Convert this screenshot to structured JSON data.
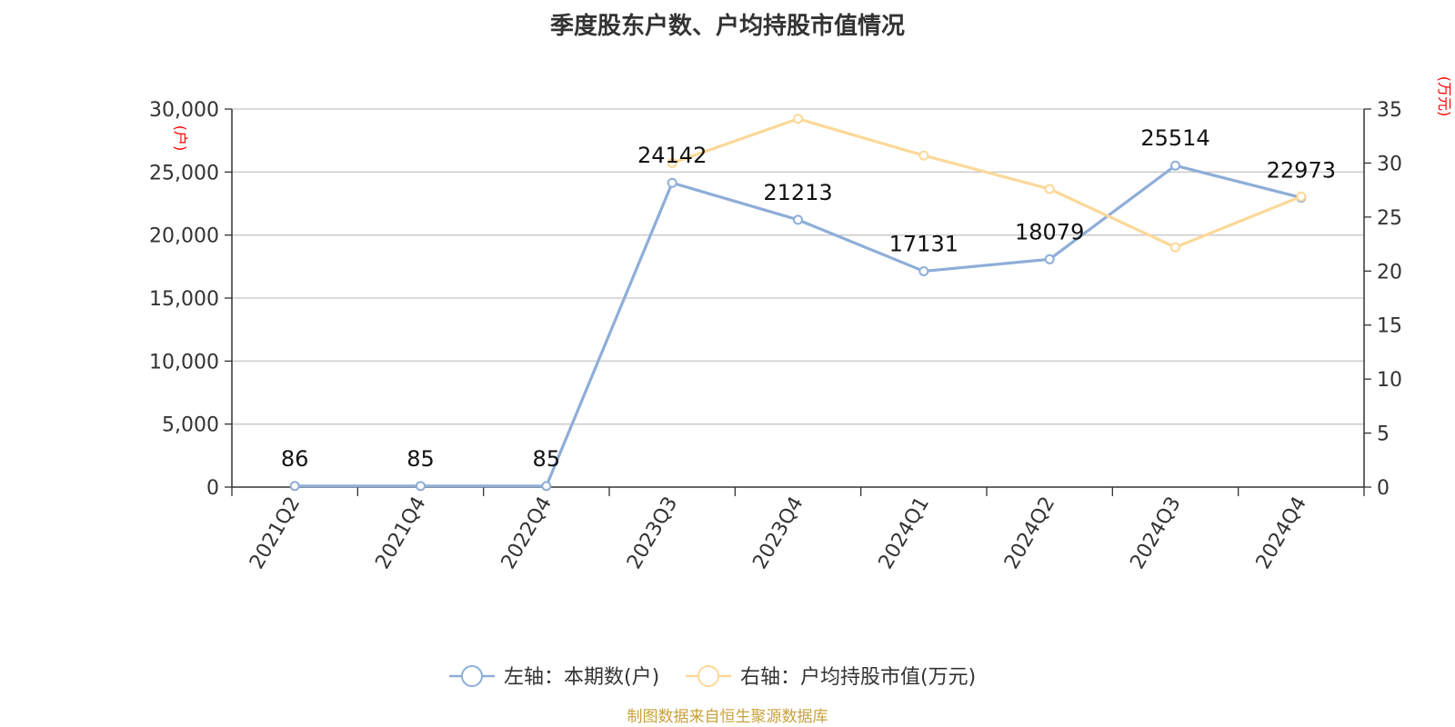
{
  "chart_data": {
    "type": "line",
    "title": "季度股东户数、户均持股市值情况",
    "categories": [
      "2021Q2",
      "2021Q4",
      "2022Q4",
      "2023Q3",
      "2023Q4",
      "2024Q1",
      "2024Q2",
      "2024Q3",
      "2024Q4"
    ],
    "series": [
      {
        "name": "左轴：本期数(户)",
        "axis": "left",
        "color": "#8eaed8",
        "values": [
          86,
          85,
          85,
          24142,
          21213,
          17131,
          18079,
          25514,
          22973
        ],
        "labels": [
          "86",
          "85",
          "85",
          "24142",
          "21213",
          "17131",
          "18079",
          "25514",
          "22973"
        ]
      },
      {
        "name": "右轴：户均持股市值(万元)",
        "axis": "right",
        "color": "#fcd898",
        "values": [
          null,
          null,
          null,
          30.0,
          34.1,
          30.7,
          27.6,
          22.2,
          26.9
        ]
      }
    ],
    "y_left": {
      "unit": "(户)",
      "ylim": [
        0,
        30000
      ],
      "ticks": [
        0,
        5000,
        10000,
        15000,
        20000,
        25000,
        30000
      ],
      "tick_labels": [
        "0",
        "5,000",
        "10,000",
        "15,000",
        "20,000",
        "25,000",
        "30,000"
      ]
    },
    "y_right": {
      "unit": "(万元)",
      "ylim": [
        0,
        35
      ],
      "ticks": [
        0,
        5,
        10,
        15,
        20,
        25,
        30,
        35
      ],
      "tick_labels": [
        "0",
        "5",
        "10",
        "15",
        "20",
        "25",
        "30",
        "35"
      ]
    },
    "grid": true,
    "legend_position": "bottom-center"
  },
  "source_text": "制图数据来自恒生聚源数据库"
}
